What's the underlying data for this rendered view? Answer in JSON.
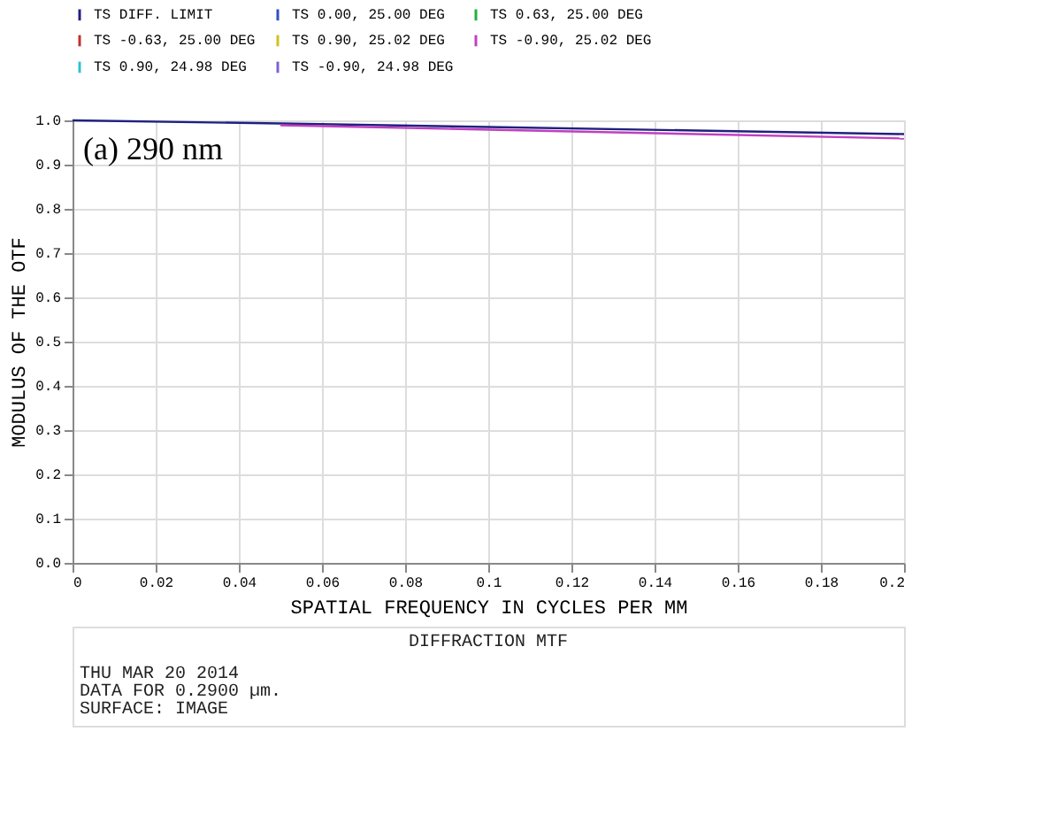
{
  "chart_data": {
    "type": "line",
    "title": "DIFFRACTION MTF",
    "xlabel": "SPATIAL FREQUENCY IN CYCLES PER MM",
    "ylabel": "MODULUS OF THE OTF",
    "annotations": [
      "(a) 290 nm",
      "THU MAR 20 2014",
      "DATA FOR 0.2900 µm.",
      "SURFACE: IMAGE"
    ],
    "x": [
      0,
      0.05,
      0.1,
      0.15,
      0.2
    ],
    "series": [
      {
        "name": "TS DIFF. LIMIT",
        "color": "#202080",
        "values": [
          1.0,
          0.993,
          0.985,
          0.977,
          0.969
        ]
      },
      {
        "name": "TS 0.00, 25.00 DEG",
        "color": "#3050c0",
        "values": [
          null,
          null,
          null,
          null,
          null
        ]
      },
      {
        "name": "TS 0.63, 25.00 DEG",
        "color": "#20b040",
        "values": [
          null,
          null,
          null,
          null,
          null
        ]
      },
      {
        "name": "TS -0.63, 25.00 DEG",
        "color": "#c03030",
        "values": [
          null,
          null,
          null,
          null,
          null
        ]
      },
      {
        "name": "TS 0.90, 25.02 DEG",
        "color": "#d0c020",
        "values": [
          null,
          null,
          null,
          null,
          null
        ]
      },
      {
        "name": "TS -0.90, 25.02 DEG",
        "color": "#c040c0",
        "values": [
          null,
          0.989,
          0.979,
          0.969,
          0.959
        ]
      },
      {
        "name": "TS 0.90, 24.98 DEG",
        "color": "#30c0d0",
        "values": [
          null,
          null,
          null,
          null,
          null
        ]
      },
      {
        "name": "TS -0.90, 24.98 DEG",
        "color": "#8060d0",
        "values": [
          null,
          null,
          null,
          null,
          null
        ]
      }
    ],
    "xlim": [
      0,
      0.2
    ],
    "xticks": [
      {
        "value": 0,
        "label": "0"
      },
      0.02,
      0.04,
      0.06,
      0.08,
      {
        "value": 0.1,
        "label": "0.1"
      },
      0.12,
      0.14,
      0.16,
      0.18,
      {
        "value": 0.2,
        "label": "0.2"
      }
    ],
    "ylim": [
      0,
      1
    ],
    "yticks": [
      {
        "value": 0,
        "label": "0.0"
      },
      0.1,
      0.2,
      0.3,
      0.4,
      0.5,
      0.6,
      0.7,
      0.8,
      0.9,
      {
        "value": 1,
        "label": "1.0"
      }
    ],
    "grid": true,
    "legend": "top",
    "line_style": "solid",
    "marker": "none"
  }
}
